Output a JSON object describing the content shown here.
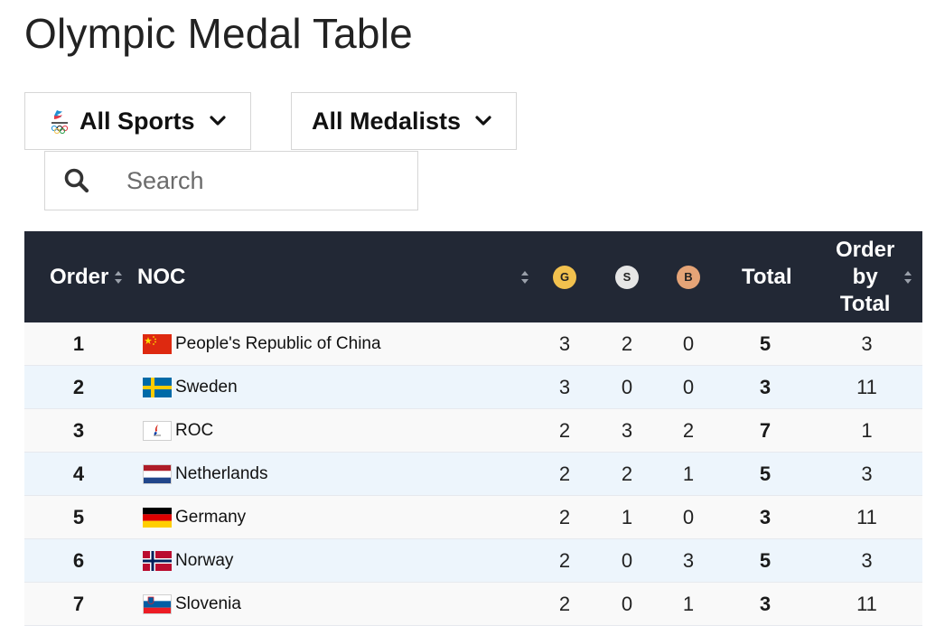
{
  "page": {
    "title": "Olympic Medal Table"
  },
  "filters": {
    "sports_label": "All Sports",
    "medalists_label": "All Medalists"
  },
  "search": {
    "placeholder": "Search"
  },
  "table": {
    "headers": {
      "order": "Order",
      "noc": "NOC",
      "gold": "G",
      "silver": "S",
      "bronze": "B",
      "total": "Total",
      "order_by_total_line1": "Order",
      "order_by_total_line2": "by",
      "order_by_total_line3": "Total"
    },
    "rows": [
      {
        "order": "1",
        "noc": "People's Republic of China",
        "gold": "3",
        "silver": "2",
        "bronze": "0",
        "total": "5",
        "order_by_total": "3"
      },
      {
        "order": "2",
        "noc": "Sweden",
        "gold": "3",
        "silver": "0",
        "bronze": "0",
        "total": "3",
        "order_by_total": "11"
      },
      {
        "order": "3",
        "noc": "ROC",
        "gold": "2",
        "silver": "3",
        "bronze": "2",
        "total": "7",
        "order_by_total": "1"
      },
      {
        "order": "4",
        "noc": "Netherlands",
        "gold": "2",
        "silver": "2",
        "bronze": "1",
        "total": "5",
        "order_by_total": "3"
      },
      {
        "order": "5",
        "noc": "Germany",
        "gold": "2",
        "silver": "1",
        "bronze": "0",
        "total": "3",
        "order_by_total": "11"
      },
      {
        "order": "6",
        "noc": "Norway",
        "gold": "2",
        "silver": "0",
        "bronze": "3",
        "total": "5",
        "order_by_total": "3"
      },
      {
        "order": "7",
        "noc": "Slovenia",
        "gold": "2",
        "silver": "0",
        "bronze": "1",
        "total": "3",
        "order_by_total": "11"
      }
    ]
  },
  "colors": {
    "header_bg": "#222835",
    "gold": "#f2c14e",
    "silver": "#e6e6e6",
    "bronze": "#e5a477",
    "row_odd": "#f9f9f9",
    "row_even": "#edf5fc"
  },
  "icons": {
    "sports_logo": "beijing-2022-emblem-icon",
    "chevron": "chevron-down-icon",
    "search": "search-icon",
    "sort": "sort-arrows-icon"
  }
}
